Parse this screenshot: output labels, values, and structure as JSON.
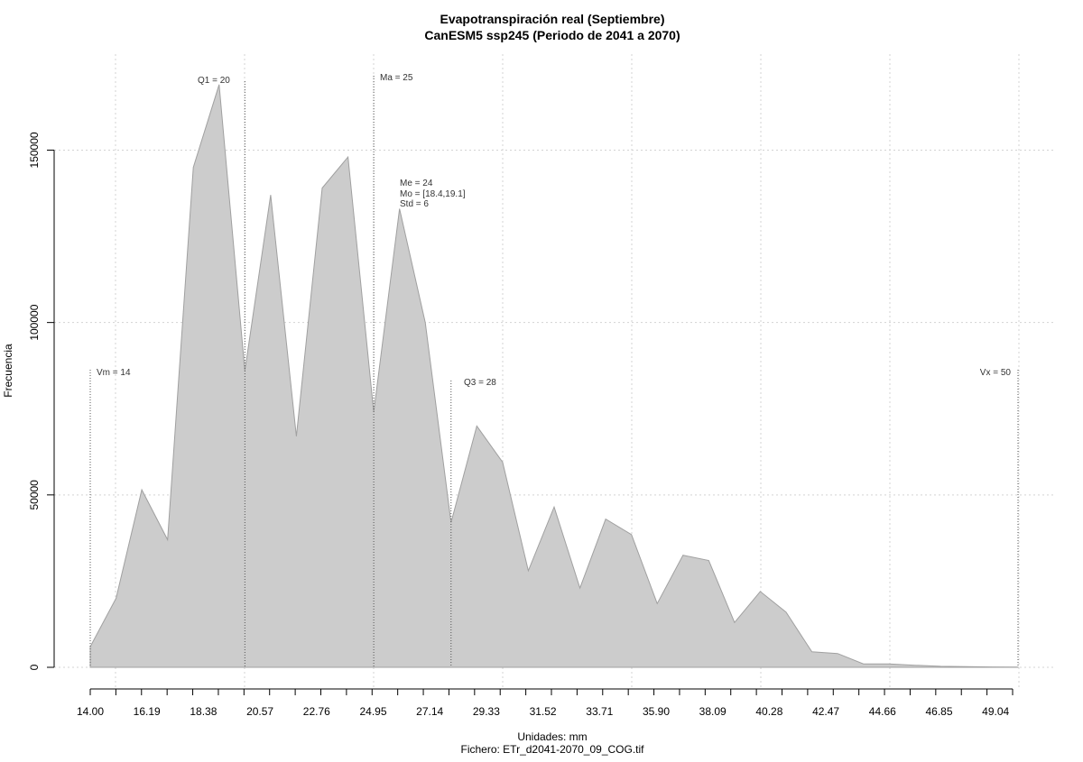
{
  "chart_data": {
    "type": "area",
    "title": "Evapotranspiración real (Septiembre)",
    "subtitle": "CanESM5 ssp245 (Periodo de 2041 a 2070)",
    "xlabel": "Unidades: mm",
    "ylabel": "Frecuencia",
    "footer": "Fichero: ETr_d2041-2070_09_COG.tif",
    "xlim": [
      14.0,
      50.0
    ],
    "ylim": [
      0,
      170000
    ],
    "grid": true,
    "fill_color": "#cccccc",
    "line_color": "#a0a0a0",
    "x_tick_labels": [
      "14.00",
      "16.19",
      "18.38",
      "20.57",
      "22.76",
      "24.95",
      "27.14",
      "29.33",
      "31.52",
      "33.71",
      "35.90",
      "38.09",
      "40.28",
      "42.47",
      "44.66",
      "46.85",
      "49.04"
    ],
    "y_tick_labels": [
      "0",
      "50000",
      "100000",
      "150000"
    ],
    "x": [
      14.0,
      15.0,
      16.0,
      17.0,
      18.0,
      19.0,
      20.0,
      21.0,
      22.0,
      23.0,
      24.0,
      25.0,
      26.0,
      27.0,
      28.0,
      29.0,
      30.0,
      31.0,
      32.0,
      33.0,
      34.0,
      35.0,
      36.0,
      37.0,
      38.0,
      39.0,
      40.0,
      41.0,
      42.0,
      43.0,
      44.0,
      45.0,
      46.0,
      47.0,
      48.0,
      49.0,
      50.0
    ],
    "values": [
      6000,
      20000,
      51500,
      37000,
      145000,
      169000,
      86000,
      137000,
      67000,
      139000,
      148000,
      74000,
      133000,
      100000,
      42000,
      70000,
      59500,
      28000,
      46500,
      23000,
      43000,
      38500,
      18500,
      32500,
      31000,
      13000,
      22000,
      16000,
      4500,
      4000,
      1000,
      1000,
      600,
      300,
      200,
      100,
      50
    ],
    "annotations": {
      "vm": {
        "label": "Vm = 14",
        "x": 14.0
      },
      "q1": {
        "label": "Q1 = 20",
        "x": 20.0
      },
      "ma": {
        "label": "Ma = 25",
        "x": 25.0
      },
      "stats": [
        "Me = 24",
        "Mo = [18.4,19.1]",
        "Std = 6"
      ],
      "q3": {
        "label": "Q3 = 28",
        "x": 28.0
      },
      "vx": {
        "label": "Vx = 50",
        "x": 50.0
      }
    }
  }
}
